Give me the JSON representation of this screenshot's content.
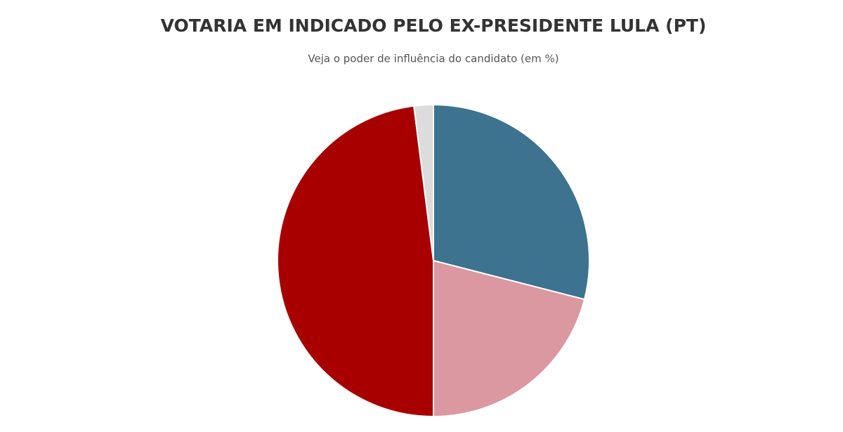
{
  "chart_data": {
    "type": "pie",
    "title": "VOTARIA EM INDICADO PELO EX-PRESIDENTE LULA (PT)",
    "subtitle": "Veja o poder de influência do candidato (em %)",
    "values": [
      29,
      21,
      48,
      2
    ],
    "colors": [
      "#3d738f",
      "#db98a1",
      "#a80000",
      "#dcdcdc"
    ]
  }
}
